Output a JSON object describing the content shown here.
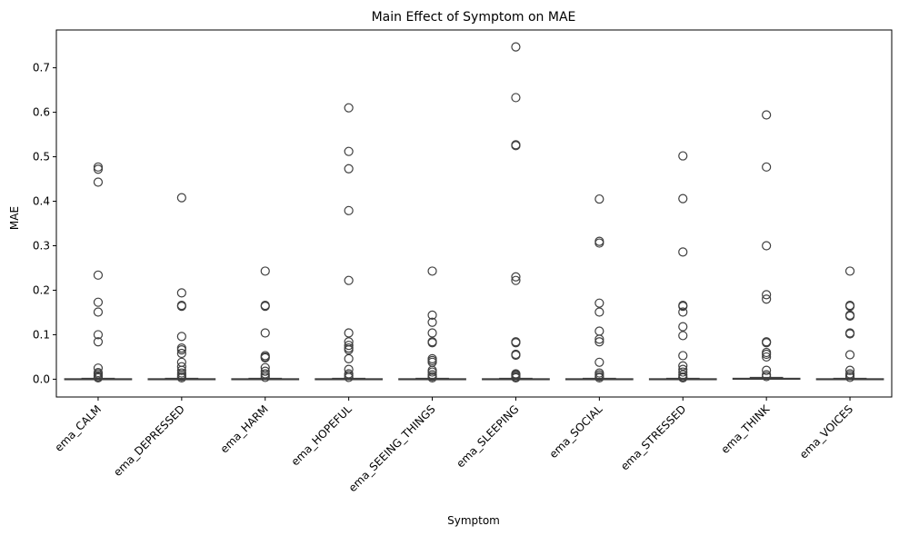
{
  "chart_data": {
    "type": "box",
    "title": "Main Effect of Symptom on MAE",
    "xlabel": "Symptom",
    "ylabel": "MAE",
    "ylim": [
      -0.04,
      0.785
    ],
    "yticks": [
      0.0,
      0.1,
      0.2,
      0.3,
      0.4,
      0.5,
      0.6,
      0.7
    ],
    "ytick_labels": [
      "0.0",
      "0.1",
      "0.2",
      "0.3",
      "0.4",
      "0.5",
      "0.6",
      "0.7"
    ],
    "grid": false,
    "box_color": "#3f3f3f",
    "categories": [
      "ema_CALM",
      "ema_DEPRESSED",
      "ema_HARM",
      "ema_HOPEFUL",
      "ema_SEEING_THINGS",
      "ema_SLEEPING",
      "ema_SOCIAL",
      "ema_STRESSED",
      "ema_THINK",
      "ema_VOICES"
    ],
    "boxes": [
      {
        "q1": 0.0,
        "median": 0.0,
        "q3": 0.001,
        "whisker_low": 0.0,
        "whisker_high": 0.002,
        "outliers": [
          0.477,
          0.472,
          0.443,
          0.234,
          0.173,
          0.151,
          0.1,
          0.084,
          0.025,
          0.015,
          0.012,
          0.008,
          0.005,
          0.003
        ]
      },
      {
        "q1": 0.0,
        "median": 0.0,
        "q3": 0.001,
        "whisker_low": 0.0,
        "whisker_high": 0.002,
        "outliers": [
          0.408,
          0.194,
          0.166,
          0.164,
          0.096,
          0.07,
          0.066,
          0.058,
          0.038,
          0.028,
          0.02,
          0.014,
          0.01,
          0.006,
          0.003
        ]
      },
      {
        "q1": 0.0,
        "median": 0.0,
        "q3": 0.001,
        "whisker_low": 0.0,
        "whisker_high": 0.002,
        "outliers": [
          0.243,
          0.166,
          0.164,
          0.104,
          0.053,
          0.05,
          0.048,
          0.026,
          0.018,
          0.012,
          0.008,
          0.004
        ]
      },
      {
        "q1": 0.0,
        "median": 0.0,
        "q3": 0.001,
        "whisker_low": 0.0,
        "whisker_high": 0.002,
        "outliers": [
          0.61,
          0.512,
          0.473,
          0.379,
          0.222,
          0.104,
          0.084,
          0.076,
          0.07,
          0.066,
          0.046,
          0.022,
          0.012,
          0.008,
          0.004
        ]
      },
      {
        "q1": 0.0,
        "median": 0.0,
        "q3": 0.001,
        "whisker_low": 0.0,
        "whisker_high": 0.002,
        "outliers": [
          0.243,
          0.144,
          0.128,
          0.104,
          0.084,
          0.082,
          0.046,
          0.042,
          0.038,
          0.02,
          0.016,
          0.01,
          0.006,
          0.003
        ]
      },
      {
        "q1": 0.0,
        "median": 0.0,
        "q3": 0.001,
        "whisker_low": 0.0,
        "whisker_high": 0.002,
        "outliers": [
          0.747,
          0.633,
          0.527,
          0.525,
          0.23,
          0.222,
          0.084,
          0.082,
          0.056,
          0.054,
          0.012,
          0.01,
          0.008,
          0.005,
          0.003
        ]
      },
      {
        "q1": 0.0,
        "median": 0.0,
        "q3": 0.001,
        "whisker_low": 0.0,
        "whisker_high": 0.002,
        "outliers": [
          0.405,
          0.31,
          0.306,
          0.171,
          0.151,
          0.108,
          0.09,
          0.084,
          0.038,
          0.014,
          0.01,
          0.006,
          0.003
        ]
      },
      {
        "q1": 0.0,
        "median": 0.0,
        "q3": 0.001,
        "whisker_low": 0.0,
        "whisker_high": 0.002,
        "outliers": [
          0.502,
          0.406,
          0.286,
          0.166,
          0.164,
          0.151,
          0.118,
          0.098,
          0.053,
          0.03,
          0.022,
          0.016,
          0.01,
          0.005,
          0.003
        ]
      },
      {
        "q1": 0.0,
        "median": 0.001,
        "q3": 0.002,
        "whisker_low": 0.0,
        "whisker_high": 0.004,
        "outliers": [
          0.594,
          0.477,
          0.3,
          0.19,
          0.18,
          0.084,
          0.082,
          0.06,
          0.056,
          0.05,
          0.02,
          0.01,
          0.006
        ]
      },
      {
        "q1": 0.0,
        "median": 0.0,
        "q3": 0.001,
        "whisker_low": 0.0,
        "whisker_high": 0.002,
        "outliers": [
          0.243,
          0.166,
          0.164,
          0.144,
          0.142,
          0.104,
          0.102,
          0.055,
          0.02,
          0.012,
          0.008,
          0.004
        ]
      }
    ]
  }
}
